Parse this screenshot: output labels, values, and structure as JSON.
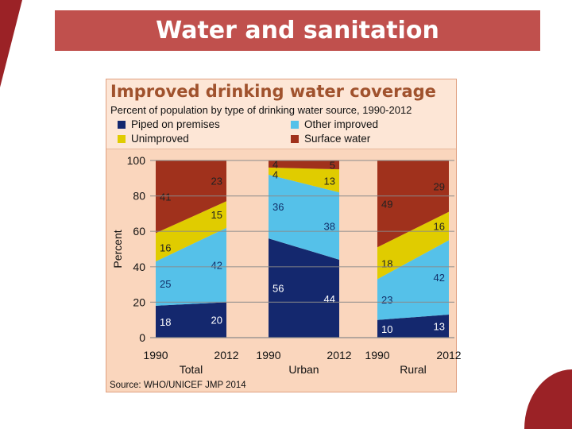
{
  "slide": {
    "title": "Water and sanitation"
  },
  "chart_data": {
    "type": "area",
    "title": "Improved drinking water coverage",
    "subtitle": "Percent of population by type of drinking water source, 1990-2012",
    "ylabel": "Percent",
    "ylim": [
      0,
      100
    ],
    "yticks": [
      "0",
      "20",
      "40",
      "60",
      "80",
      "100"
    ],
    "grid": true,
    "legend_placement": "top",
    "source": "Source:  WHO/UNICEF JMP 2014",
    "series": [
      {
        "name": "Piped on premises",
        "color": "#14286e"
      },
      {
        "name": "Other improved",
        "color": "#55c1e9"
      },
      {
        "name": "Unimproved",
        "color": "#e0cc00"
      },
      {
        "name": "Surface water",
        "color": "#a0311c"
      }
    ],
    "groups": [
      {
        "name": "Total",
        "x": [
          "1990",
          "2012"
        ],
        "values": {
          "1990": [
            18,
            25,
            16,
            41
          ],
          "2012": [
            20,
            42,
            15,
            23
          ]
        }
      },
      {
        "name": "Urban",
        "x": [
          "1990",
          "2012"
        ],
        "values": {
          "1990": [
            56,
            36,
            4,
            4
          ],
          "2012": [
            44,
            38,
            13,
            5
          ]
        }
      },
      {
        "name": "Rural",
        "x": [
          "1990",
          "2012"
        ],
        "values": {
          "1990": [
            10,
            23,
            18,
            49
          ],
          "2012": [
            13,
            42,
            16,
            29
          ]
        }
      }
    ]
  }
}
